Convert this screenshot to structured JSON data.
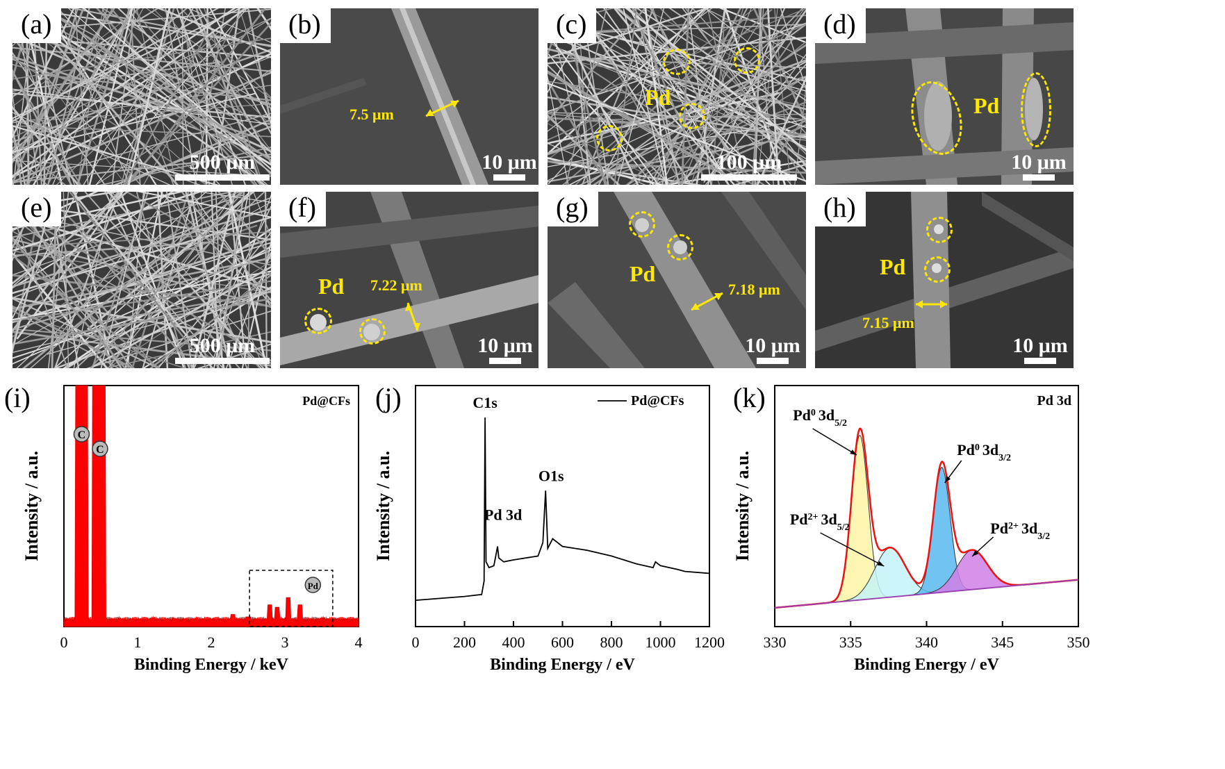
{
  "panels": {
    "a": {
      "label": "(a)",
      "scale": "500 μm"
    },
    "b": {
      "label": "(b)",
      "scale": "10 μm",
      "dim": "7.5 μm"
    },
    "c": {
      "label": "(c)",
      "scale": "100 μm",
      "element": "Pd"
    },
    "d": {
      "label": "(d)",
      "scale": "10 μm",
      "element": "Pd"
    },
    "e": {
      "label": "(e)",
      "scale": "500 μm"
    },
    "f": {
      "label": "(f)",
      "scale": "10 μm",
      "element": "Pd",
      "dim": "7.22 μm"
    },
    "g": {
      "label": "(g)",
      "scale": "10 μm",
      "element": "Pd",
      "dim": "7.18 μm"
    },
    "h": {
      "label": "(h)",
      "scale": "10 μm",
      "element": "Pd",
      "dim": "7.15 μm"
    }
  },
  "chart_data": [
    {
      "type": "bar",
      "panel": "(i)",
      "legend": "Pd@CFs",
      "xlabel": "Binding Energy / keV",
      "ylabel": "Intensity / a.u.",
      "xlim": [
        0,
        4
      ],
      "xticks": [
        0,
        1,
        2,
        3,
        4
      ],
      "peak_labels": [
        {
          "text": "C",
          "x": 0.25
        },
        {
          "text": "C",
          "x": 0.5
        },
        {
          "text": "Pd",
          "x": 3.4
        }
      ],
      "x": [
        0.2,
        0.25,
        0.3,
        0.45,
        0.5,
        0.55,
        0.75,
        1.0,
        1.2,
        1.5,
        1.8,
        2.0,
        2.3,
        2.5,
        2.8,
        2.9,
        3.05,
        3.2,
        3.5,
        3.8,
        4.0
      ],
      "y": [
        100,
        100,
        100,
        100,
        100,
        100,
        3,
        2,
        3,
        3,
        3,
        3,
        5,
        4,
        9,
        8,
        12,
        9,
        3,
        2,
        2
      ]
    },
    {
      "type": "line",
      "panel": "(j)",
      "legend": "Pd@CFs",
      "xlabel": "Binding Energy / eV",
      "ylabel": "Intensity / a.u.",
      "xlim": [
        0,
        1200
      ],
      "xticks": [
        0,
        200,
        400,
        600,
        800,
        1000,
        1200
      ],
      "peak_labels": [
        {
          "text": "C1s",
          "x": 284
        },
        {
          "text": "Pd 3d",
          "x": 335
        },
        {
          "text": "O1s",
          "x": 531
        }
      ],
      "x": [
        0,
        100,
        200,
        270,
        280,
        284,
        288,
        300,
        320,
        335,
        340,
        360,
        400,
        500,
        520,
        531,
        540,
        560,
        600,
        700,
        800,
        900,
        970,
        980,
        1000,
        1070,
        1100,
        1200
      ],
      "y": [
        5,
        6,
        7,
        8,
        15,
        100,
        25,
        22,
        23,
        33,
        27,
        25,
        26,
        28,
        35,
        62,
        32,
        37,
        33,
        31,
        28,
        24,
        22,
        25,
        23,
        21,
        20,
        19
      ]
    },
    {
      "type": "line",
      "panel": "(k)",
      "legend": "Pd 3d",
      "xlabel": "Binding Energy / eV",
      "ylabel": "Intensity / a.u.",
      "xlim": [
        330,
        350
      ],
      "xticks": [
        330,
        335,
        340,
        345,
        350
      ],
      "series": [
        {
          "name": "Pd⁰ 3d₅/₂",
          "center": 335.6,
          "height": 100
        },
        {
          "name": "Pd²⁺ 3d₅/₂",
          "center": 337.6,
          "height": 30
        },
        {
          "name": "Pd⁰ 3d₃/₂",
          "center": 341.0,
          "height": 76
        },
        {
          "name": "Pd²⁺ 3d₃/₂",
          "center": 343.0,
          "height": 24
        }
      ]
    }
  ],
  "labels_k": {
    "p1": "Pd",
    "p1sup": "0",
    "p1sub": "5/2",
    "p2": "Pd",
    "p2sup": "2+",
    "p2sub": "5/2",
    "p3": "Pd",
    "p3sup": "0",
    "p3sub": "3/2",
    "p4": "Pd",
    "p4sup": "2+",
    "p4sub": "3/2",
    "shell": "3d"
  }
}
